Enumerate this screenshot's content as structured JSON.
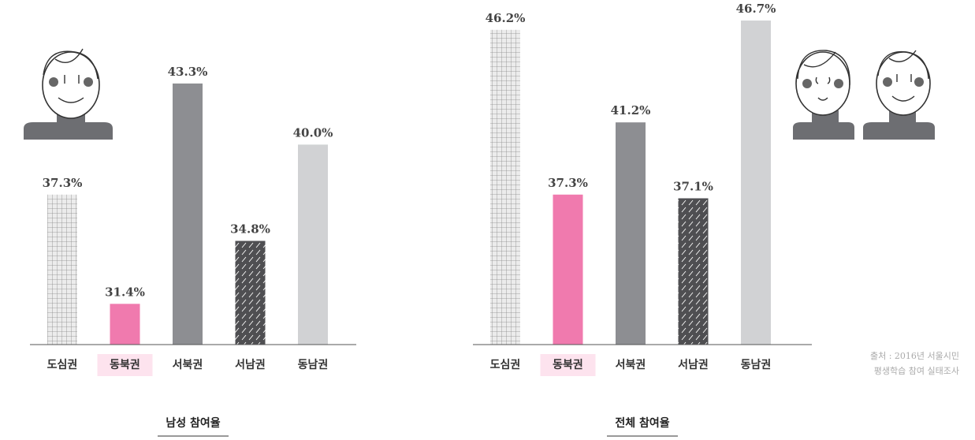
{
  "chart_data": [
    {
      "type": "bar",
      "title": "남성 참여율",
      "categories": [
        "도심권",
        "동북권",
        "서북권",
        "서남권",
        "동남권"
      ],
      "values": [
        37.3,
        31.4,
        43.3,
        34.8,
        40.0
      ],
      "value_labels": [
        "37.3%",
        "31.4%",
        "43.3%",
        "34.8%",
        "40.0%"
      ],
      "colors": [
        "#e6e6e6",
        "#f07aae",
        "#8d8e92",
        "#4f4f52",
        "#d1d2d4"
      ],
      "patterns": [
        "grid",
        null,
        null,
        "hatch",
        null
      ],
      "highlight": 1,
      "ylim": [
        29.2,
        47
      ]
    },
    {
      "type": "bar",
      "title": "전체 참여율",
      "categories": [
        "도심권",
        "동북권",
        "서북권",
        "서남권",
        "동남권"
      ],
      "values": [
        46.2,
        37.3,
        41.2,
        37.1,
        46.7
      ],
      "value_labels": [
        "46.2%",
        "37.3%",
        "41.2%",
        "37.1%",
        "46.7%"
      ],
      "colors": [
        "#e6e6e6",
        "#f07aae",
        "#8d8e92",
        "#4f4f52",
        "#d1d2d4"
      ],
      "patterns": [
        "grid",
        null,
        null,
        "hatch",
        null
      ],
      "highlight": 1,
      "ylim": [
        29.2,
        47
      ]
    }
  ],
  "source": [
    "출처 : 2016년 서울시민",
    "평생학습 참여 실태조사"
  ]
}
